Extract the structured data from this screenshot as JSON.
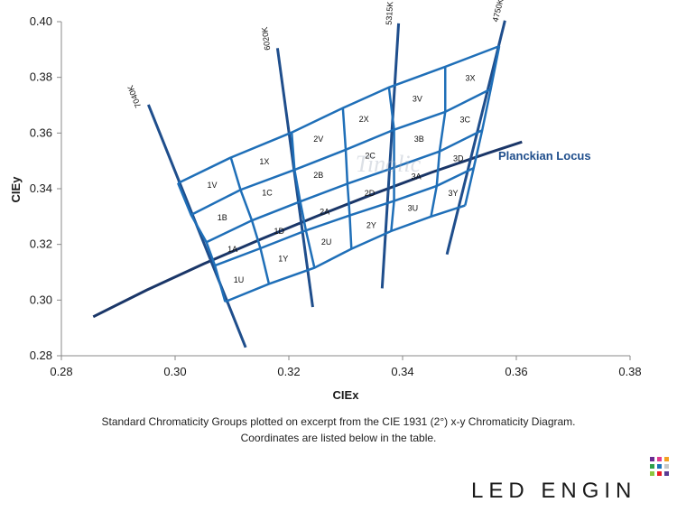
{
  "chart_data": {
    "type": "scatter",
    "xlabel": "CIEx",
    "ylabel": "CIEy",
    "xlim": [
      0.28,
      0.38
    ],
    "ylim": [
      0.28,
      0.4
    ],
    "x_ticks": [
      "0.28",
      "0.30",
      "0.32",
      "0.34",
      "0.36",
      "0.38"
    ],
    "y_ticks": [
      "0.28",
      "0.30",
      "0.32",
      "0.34",
      "0.36",
      "0.38",
      "0.40"
    ],
    "planckian_locus": {
      "label": "Planckian Locus",
      "x": [
        0.2856,
        0.295,
        0.305,
        0.315,
        0.325,
        0.335,
        0.345,
        0.355,
        0.361
      ],
      "y": [
        0.294,
        0.3036,
        0.313,
        0.3218,
        0.3302,
        0.3382,
        0.3458,
        0.3528,
        0.3568
      ]
    },
    "cct_lines": [
      {
        "label": "7040K",
        "x": [
          0.2953,
          0.3124
        ],
        "y": [
          0.3702,
          0.283
        ]
      },
      {
        "label": "6020K",
        "x": [
          0.318,
          0.3242
        ],
        "y": [
          0.3905,
          0.2975
        ]
      },
      {
        "label": "5315K",
        "x": [
          0.3393,
          0.3364
        ],
        "y": [
          0.3994,
          0.3042
        ]
      },
      {
        "label": "4750K",
        "x": [
          0.358,
          0.3478
        ],
        "y": [
          0.4004,
          0.3164
        ]
      }
    ],
    "grid_points": [
      [
        [
          0.3005,
          0.342
        ],
        [
          0.3098,
          0.3512
        ],
        [
          0.3205,
          0.3602
        ],
        [
          0.3295,
          0.369
        ],
        [
          0.3376,
          0.3764
        ],
        [
          0.3475,
          0.3838
        ],
        [
          0.357,
          0.3912
        ]
      ],
      [
        [
          0.3028,
          0.3306
        ],
        [
          0.3115,
          0.3396
        ],
        [
          0.321,
          0.3468
        ],
        [
          0.33,
          0.354
        ],
        [
          0.3385,
          0.3612
        ],
        [
          0.3475,
          0.3676
        ],
        [
          0.3555,
          0.3758
        ]
      ],
      [
        [
          0.3055,
          0.3208
        ],
        [
          0.3135,
          0.3286
        ],
        [
          0.322,
          0.3354
        ],
        [
          0.3303,
          0.3418
        ],
        [
          0.3385,
          0.3476
        ],
        [
          0.3465,
          0.3534
        ],
        [
          0.354,
          0.361
        ]
      ],
      [
        [
          0.307,
          0.3124
        ],
        [
          0.315,
          0.3186
        ],
        [
          0.323,
          0.325
        ],
        [
          0.3307,
          0.3304
        ],
        [
          0.3385,
          0.3356
        ],
        [
          0.346,
          0.341
        ],
        [
          0.3525,
          0.3474
        ]
      ],
      [
        [
          0.3088,
          0.2994
        ],
        [
          0.3165,
          0.3058
        ],
        [
          0.3245,
          0.3116
        ],
        [
          0.331,
          0.3184
        ],
        [
          0.338,
          0.3248
        ],
        [
          0.345,
          0.33
        ],
        [
          0.351,
          0.334
        ]
      ]
    ],
    "bins": [
      {
        "label": "1V",
        "x": 0.3065,
        "y": 0.3413
      },
      {
        "label": "1X",
        "x": 0.3157,
        "y": 0.3498
      },
      {
        "label": "2V",
        "x": 0.3252,
        "y": 0.3578
      },
      {
        "label": "2X",
        "x": 0.3332,
        "y": 0.365
      },
      {
        "label": "3V",
        "x": 0.3426,
        "y": 0.3723
      },
      {
        "label": "3X",
        "x": 0.3519,
        "y": 0.3797
      },
      {
        "label": "1B",
        "x": 0.3083,
        "y": 0.3296
      },
      {
        "label": "1C",
        "x": 0.3162,
        "y": 0.3385
      },
      {
        "label": "2B",
        "x": 0.3252,
        "y": 0.3448
      },
      {
        "label": "2C",
        "x": 0.3343,
        "y": 0.3518
      },
      {
        "label": "3B",
        "x": 0.3429,
        "y": 0.3578
      },
      {
        "label": "3C",
        "x": 0.351,
        "y": 0.3648
      },
      {
        "label": "1A",
        "x": 0.3101,
        "y": 0.3183
      },
      {
        "label": "1D",
        "x": 0.3183,
        "y": 0.3248
      },
      {
        "label": "2A",
        "x": 0.3263,
        "y": 0.3318
      },
      {
        "label": "2D",
        "x": 0.3342,
        "y": 0.3383
      },
      {
        "label": "3A",
        "x": 0.3424,
        "y": 0.3443
      },
      {
        "label": "3D",
        "x": 0.3498,
        "y": 0.3508
      },
      {
        "label": "1U",
        "x": 0.3112,
        "y": 0.3073
      },
      {
        "label": "1Y",
        "x": 0.319,
        "y": 0.3148
      },
      {
        "label": "2U",
        "x": 0.3266,
        "y": 0.3208
      },
      {
        "label": "2Y",
        "x": 0.3345,
        "y": 0.3268
      },
      {
        "label": "3U",
        "x": 0.3418,
        "y": 0.333
      },
      {
        "label": "3Y",
        "x": 0.3489,
        "y": 0.3383
      }
    ],
    "watermark": "Tinolic",
    "colors": {
      "grid": "#1f6fb8",
      "locus": "#1a3668",
      "cct": "#1f4e8c",
      "axis": "#888888"
    }
  },
  "caption": {
    "line1": "Standard Chromaticity Groups plotted on excerpt from the CIE 1931 (2°) x-y Chromaticity Diagram.",
    "line2": "Coordinates are listed below in the table."
  },
  "brand": {
    "name": "LED ENGIN",
    "mark_colors": [
      "#6a2c91",
      "#e23c8f",
      "#f4a021",
      "#2fa04a",
      "#1c73b9",
      "#c8c8c8",
      "#8cc63f",
      "#ed1c24",
      "#5b3a93"
    ]
  }
}
